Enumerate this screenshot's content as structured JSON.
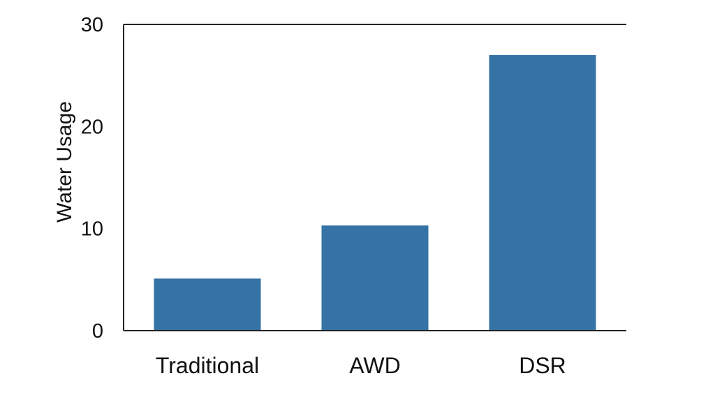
{
  "chart_data": {
    "type": "bar",
    "title": "",
    "xlabel": "",
    "ylabel": "Water Usage",
    "categories": [
      "Traditional",
      "AWD",
      "DSR"
    ],
    "values": [
      5.1,
      10.3,
      27.0
    ],
    "ylim": [
      0,
      30
    ],
    "yticks": [
      0,
      10,
      20,
      30
    ],
    "grid": false,
    "legend": "none",
    "bar_color": "#3572a5",
    "axis_color": "#222222"
  }
}
